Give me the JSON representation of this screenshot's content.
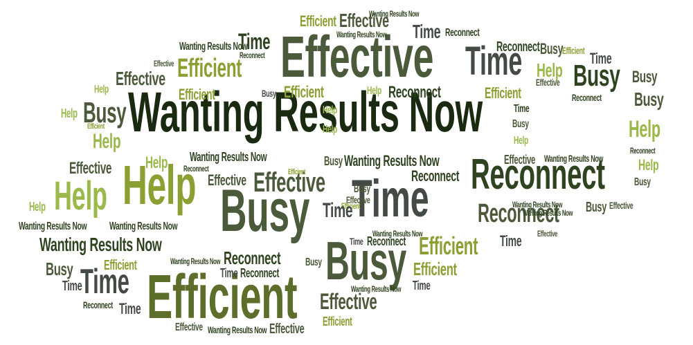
{
  "words": {
    "wrn": "Wanting Results Now",
    "eff": "Effective",
    "efc": "Efficient",
    "time": "Time",
    "busy": "Busy",
    "help": "Help",
    "rec": "Reconnect"
  },
  "colors": {
    "very_dark_green": "#1a2a10",
    "dark_green": "#2f4320",
    "olive": "#4b5a3a",
    "olive_green": "#5c6e2a",
    "yellow_green": "#8aa032",
    "light_green": "#9bb84a",
    "grey_green": "#444b44",
    "background": "#ffffff"
  }
}
